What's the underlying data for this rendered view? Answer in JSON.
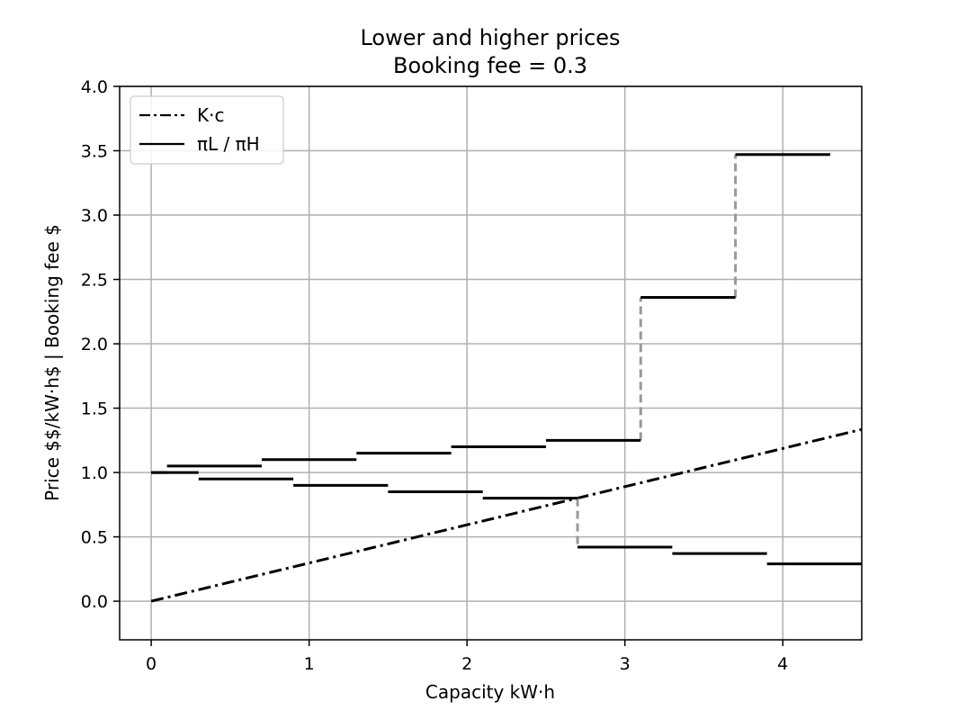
{
  "chart_data": {
    "type": "line",
    "title": "Lower and higher prices",
    "subtitle": "Booking fee = 0.3",
    "xlabel": "Capacity kW·h",
    "ylabel": "Price $$/kW·h$ | Booking fee $",
    "xlim": [
      -0.2,
      4.5
    ],
    "ylim": [
      -0.3,
      4.0
    ],
    "x_ticks": [
      0,
      1,
      2,
      3,
      4
    ],
    "x_tick_labels": [
      "0",
      "1",
      "2",
      "3",
      "4"
    ],
    "y_ticks": [
      0.0,
      0.5,
      1.0,
      1.5,
      2.0,
      2.5,
      3.0,
      3.5,
      4.0
    ],
    "y_tick_labels": [
      "0.0",
      "0.5",
      "1.0",
      "1.5",
      "2.0",
      "2.5",
      "3.0",
      "3.5",
      "4.0"
    ],
    "grid": true,
    "legend_position": "top-left",
    "legend": [
      {
        "label": "K·c",
        "style": "dashdot"
      },
      {
        "label": "πL / πH",
        "style": "solid"
      }
    ],
    "series": [
      {
        "name": "K·c",
        "style": "dashdot",
        "color": "#000000",
        "x": [
          0,
          4.5
        ],
        "y": [
          0,
          1.335
        ]
      },
      {
        "name": "πL / πH",
        "style": "solid",
        "color": "#000000",
        "steps": [
          {
            "x0": 0.0,
            "x1": 0.1,
            "y": 1.0
          },
          {
            "x0": 0.1,
            "x1": 0.7,
            "y": 1.05
          },
          {
            "x0": 0.7,
            "x1": 1.3,
            "y": 1.1
          },
          {
            "x0": 1.3,
            "x1": 1.9,
            "y": 1.15
          },
          {
            "x0": 1.9,
            "x1": 2.5,
            "y": 1.2
          },
          {
            "x0": 2.5,
            "x1": 3.1,
            "y": 1.25
          },
          {
            "x0": 3.1,
            "x1": 3.7,
            "y": 2.36
          },
          {
            "x0": 3.7,
            "x1": 4.3,
            "y": 3.47
          },
          {
            "x0": 0.0,
            "x1": 0.3,
            "y": 1.0
          },
          {
            "x0": 0.3,
            "x1": 0.9,
            "y": 0.95
          },
          {
            "x0": 0.9,
            "x1": 1.5,
            "y": 0.9
          },
          {
            "x0": 1.5,
            "x1": 2.1,
            "y": 0.85
          },
          {
            "x0": 2.1,
            "x1": 2.7,
            "y": 0.8
          },
          {
            "x0": 2.7,
            "x1": 3.3,
            "y": 0.42
          },
          {
            "x0": 3.3,
            "x1": 3.9,
            "y": 0.37
          },
          {
            "x0": 3.9,
            "x1": 4.5,
            "y": 0.29
          }
        ],
        "jumps": [
          {
            "x": 2.7,
            "y0": 0.8,
            "y1": 0.42
          },
          {
            "x": 3.1,
            "y0": 1.25,
            "y1": 2.36
          },
          {
            "x": 3.7,
            "y0": 2.36,
            "y1": 3.47
          }
        ],
        "jump_color": "#999999"
      }
    ]
  }
}
